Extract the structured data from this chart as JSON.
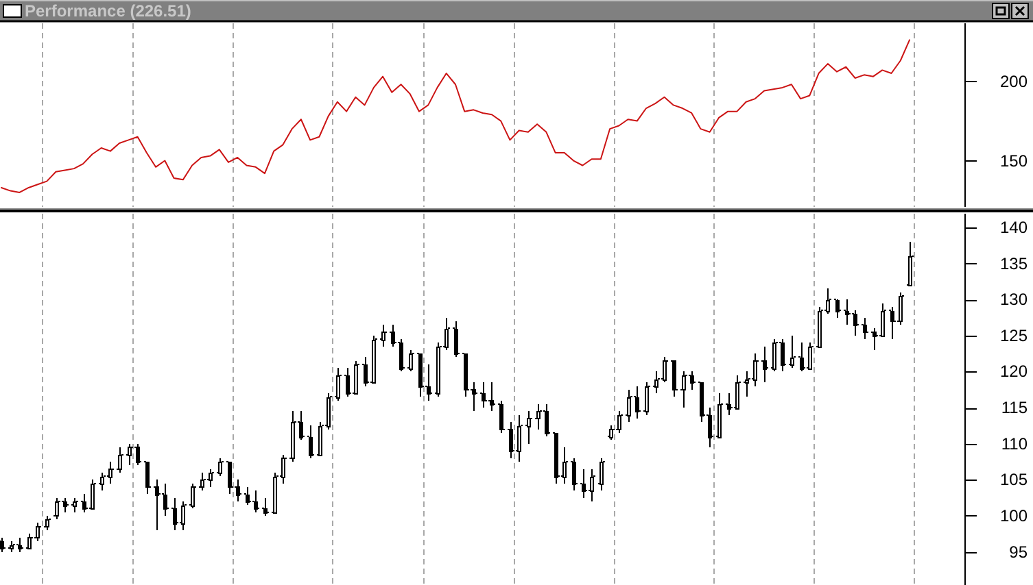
{
  "chart_data": [
    {
      "type": "line",
      "title": "Performance (226.51)",
      "tick_labels": "y",
      "categories": [
        null,
        null,
        null,
        null,
        null,
        null,
        null,
        null,
        null,
        null,
        null,
        null,
        null,
        null,
        null,
        null,
        null,
        null,
        null,
        null,
        null,
        null,
        null,
        null,
        null,
        null,
        null,
        null,
        null,
        null,
        null,
        null,
        null,
        null,
        null,
        null,
        null,
        null,
        null,
        null,
        null,
        null,
        null,
        null,
        null,
        null,
        null,
        null,
        null,
        null,
        null,
        null,
        null,
        null,
        null,
        null,
        null,
        null,
        null,
        null,
        null,
        null,
        null,
        null,
        null,
        null,
        null,
        null,
        null,
        null,
        null,
        null,
        null,
        null,
        null,
        null,
        null,
        null,
        null,
        null,
        null,
        null,
        null,
        null,
        null,
        null,
        null,
        null,
        null,
        null,
        null,
        null,
        null,
        null,
        null,
        null,
        null,
        null,
        null,
        null,
        null
      ],
      "series": [
        {
          "color": "#cc1414",
          "values": [
            133,
            131,
            130,
            133,
            135,
            137,
            143,
            144,
            145,
            148,
            154,
            158,
            156,
            161,
            163,
            165,
            155,
            146,
            150,
            139,
            138,
            147,
            152,
            153,
            157,
            149,
            152,
            147,
            146,
            142,
            156,
            160,
            170,
            176,
            163,
            165,
            178,
            187,
            181,
            190,
            185,
            196,
            203,
            193,
            198,
            192,
            181,
            185,
            196,
            205,
            198,
            181,
            182,
            180,
            179,
            175,
            163,
            169,
            168,
            173,
            168,
            155,
            155,
            150,
            147,
            151,
            151,
            170,
            172,
            176,
            175,
            183,
            186,
            190,
            185,
            183,
            180,
            170,
            168,
            177,
            181,
            181,
            187,
            189,
            194,
            195,
            196,
            198,
            189,
            191,
            205,
            211,
            206,
            209,
            202,
            204,
            203,
            207,
            205,
            213,
            226
          ]
        }
      ],
      "ylim": [
        120.9,
        236.5
      ],
      "yticks": [
        150,
        200
      ]
    },
    {
      "type": "candlestick",
      "tick_labels": "y",
      "color": "#000000",
      "categories": [
        null,
        null,
        null,
        null,
        null,
        null,
        null,
        null,
        null,
        null,
        null,
        null,
        null,
        null,
        null,
        null,
        null,
        null,
        null,
        null,
        null,
        null,
        null,
        null,
        null,
        null,
        null,
        null,
        null,
        null,
        null,
        null,
        null,
        null,
        null,
        null,
        null,
        null,
        null,
        null,
        null,
        null,
        null,
        null,
        null,
        null,
        null,
        null,
        null,
        null,
        null,
        null,
        null,
        null,
        null,
        null,
        null,
        null,
        null,
        null,
        null,
        null,
        null,
        null,
        null,
        null,
        null,
        null,
        null,
        null,
        null,
        null,
        null,
        null,
        null,
        null,
        null,
        null,
        null,
        null,
        null,
        null,
        null,
        null,
        null,
        null,
        null,
        null,
        null,
        null,
        null,
        null,
        null,
        null,
        null,
        null,
        null,
        null,
        null,
        null,
        null
      ],
      "ohlc": [
        [
          96.5,
          97,
          95,
          95.5
        ],
        [
          95.5,
          96.5,
          95,
          96
        ],
        [
          96,
          97,
          95,
          95.5
        ],
        [
          95.5,
          97.5,
          95.5,
          97
        ],
        [
          97,
          99,
          96.5,
          98.5
        ],
        [
          98.5,
          100,
          98,
          99.5
        ],
        [
          100,
          102.5,
          99.5,
          102
        ],
        [
          102,
          102.5,
          100.5,
          101.5
        ],
        [
          101.5,
          102.5,
          100.5,
          102
        ],
        [
          102,
          103,
          100.5,
          101
        ],
        [
          101,
          105,
          101,
          104.5
        ],
        [
          104.5,
          106,
          103.5,
          105.5
        ],
        [
          105.5,
          107.5,
          104.5,
          106.5
        ],
        [
          106.5,
          109.5,
          106,
          108.5
        ],
        [
          108.5,
          110,
          107,
          109.5
        ],
        [
          109.5,
          110,
          107,
          107.5
        ],
        [
          107.5,
          107.5,
          103,
          104
        ],
        [
          104,
          105,
          98,
          103
        ],
        [
          103,
          104.5,
          100,
          101
        ],
        [
          101,
          102.5,
          98,
          99
        ],
        [
          99,
          102,
          98,
          101.5
        ],
        [
          101.5,
          104.5,
          101,
          104
        ],
        [
          104,
          106,
          103.5,
          105
        ],
        [
          105,
          106.5,
          104,
          106
        ],
        [
          106,
          108,
          105.5,
          107.5
        ],
        [
          107.5,
          107.5,
          103,
          104
        ],
        [
          104,
          105,
          102,
          103
        ],
        [
          103,
          104,
          101.5,
          102
        ],
        [
          102,
          103.5,
          100.5,
          101
        ],
        [
          101,
          102.5,
          100,
          100.5
        ],
        [
          100.5,
          106,
          100.5,
          105.5
        ],
        [
          105.5,
          108.5,
          104.5,
          108
        ],
        [
          108,
          114.5,
          107.5,
          113
        ],
        [
          113,
          114.5,
          110.5,
          111
        ],
        [
          111,
          112.5,
          108,
          108.5
        ],
        [
          108.5,
          113,
          108.5,
          112.5
        ],
        [
          112.5,
          117,
          112,
          116.5
        ],
        [
          116.5,
          120.5,
          116,
          119.5
        ],
        [
          119.5,
          120.5,
          116.5,
          117
        ],
        [
          117,
          121.5,
          117,
          121
        ],
        [
          121,
          122,
          118,
          118.5
        ],
        [
          118.5,
          125,
          118.5,
          124.5
        ],
        [
          124.5,
          126.5,
          123.5,
          125.5
        ],
        [
          125.5,
          126.5,
          123.5,
          124
        ],
        [
          124,
          124.5,
          120,
          120.5
        ],
        [
          120.5,
          123,
          120,
          122.5
        ],
        [
          122.5,
          122.5,
          116.5,
          118
        ],
        [
          118,
          121,
          116,
          117
        ],
        [
          117,
          124,
          116.5,
          123.5
        ],
        [
          123.5,
          127.5,
          123,
          126
        ],
        [
          126,
          127,
          122,
          122.5
        ],
        [
          122.5,
          122.5,
          116.5,
          117.5
        ],
        [
          117.5,
          118.5,
          114.5,
          117
        ],
        [
          117,
          118.5,
          115,
          116
        ],
        [
          116,
          118.5,
          114.5,
          115.5
        ],
        [
          115.5,
          116,
          111.5,
          112
        ],
        [
          112,
          113,
          108,
          109
        ],
        [
          109,
          114,
          107.5,
          112.5
        ],
        [
          112.5,
          114.5,
          110,
          113.5
        ],
        [
          113.5,
          115.5,
          112,
          114.5
        ],
        [
          114.5,
          115.5,
          111,
          111.5
        ],
        [
          111.5,
          111.5,
          104.5,
          105.5
        ],
        [
          105.5,
          109.5,
          104.5,
          107.5
        ],
        [
          107.5,
          108,
          103.5,
          104.5
        ],
        [
          104.5,
          106.5,
          102.5,
          103.5
        ],
        [
          103.5,
          106.5,
          102,
          105.5
        ],
        [
          104.5,
          108,
          103.5,
          107.5
        ],
        [
          111,
          112.5,
          110.5,
          112
        ],
        [
          112,
          114.5,
          111.5,
          114
        ],
        [
          114,
          117.5,
          113,
          116.5
        ],
        [
          116.5,
          118,
          113.5,
          114.5
        ],
        [
          114.5,
          118.5,
          114,
          118
        ],
        [
          118,
          120,
          117,
          119
        ],
        [
          119,
          122,
          118.5,
          121.5
        ],
        [
          121.5,
          121.5,
          116.5,
          117.5
        ],
        [
          117.5,
          120,
          115,
          119.5
        ],
        [
          119.5,
          120,
          117.5,
          118.5
        ],
        [
          118.5,
          118.5,
          113,
          114
        ],
        [
          114,
          115,
          109.5,
          111
        ],
        [
          111,
          117,
          111,
          115.5
        ],
        [
          115.5,
          117,
          114,
          115
        ],
        [
          115,
          119.5,
          115,
          118.5
        ],
        [
          118.5,
          120,
          116.5,
          119
        ],
        [
          119,
          122.5,
          118,
          121.5
        ],
        [
          121.5,
          123.5,
          118.5,
          120.5
        ],
        [
          120.5,
          124.5,
          120,
          124
        ],
        [
          124,
          124.5,
          120,
          121
        ],
        [
          121,
          125,
          120.5,
          122
        ],
        [
          122,
          124,
          120,
          120.5
        ],
        [
          120.5,
          124,
          120.5,
          123.5
        ],
        [
          123.5,
          129,
          123.5,
          128.5
        ],
        [
          128.5,
          131.5,
          128,
          130
        ],
        [
          130,
          130,
          127.5,
          128.5
        ],
        [
          128.5,
          130,
          126.5,
          128
        ],
        [
          128,
          128.5,
          125,
          126.5
        ],
        [
          126.5,
          127.5,
          124.5,
          125.5
        ],
        [
          125.5,
          126,
          123,
          125
        ],
        [
          125,
          129.5,
          125,
          128.5
        ],
        [
          128.5,
          129,
          124.5,
          127
        ],
        [
          127,
          131,
          126.5,
          130.5
        ],
        [
          132,
          138,
          132,
          136
        ]
      ],
      "ylim": [
        90.4,
        141.9
      ],
      "yticks": [
        95,
        100,
        105,
        110,
        115,
        120,
        125,
        130,
        135,
        140
      ]
    }
  ]
}
